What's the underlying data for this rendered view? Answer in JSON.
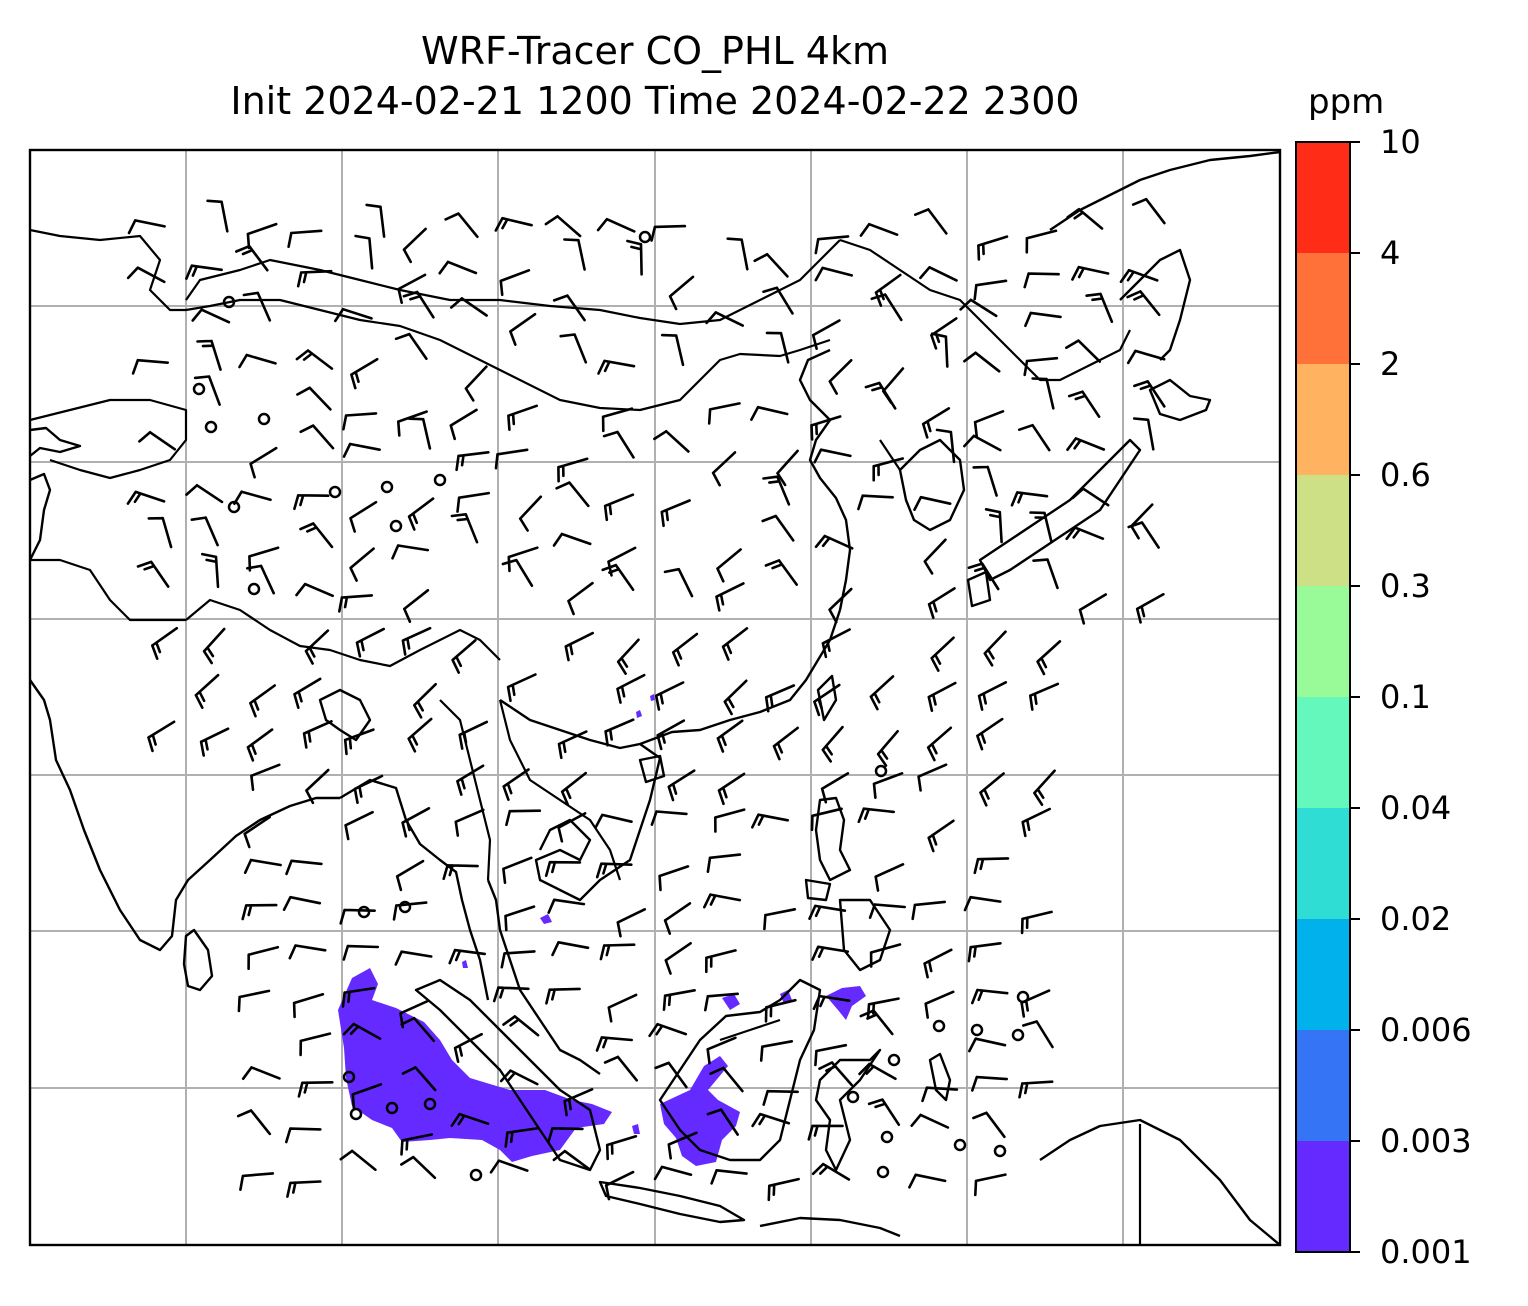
{
  "title": {
    "line1": "WRF-Tracer CO_PHL 4km",
    "line2": "Init 2024-02-21 1200 Time 2024-02-22 2300"
  },
  "colorbar": {
    "units": "ppm",
    "ticks": [
      "0.001",
      "0.003",
      "0.006",
      "0.02",
      "0.04",
      "0.1",
      "0.3",
      "0.6",
      "2",
      "4",
      "10"
    ],
    "colors": [
      "#652aff",
      "#3574f4",
      "#00b1ec",
      "#2fddd5",
      "#64f8bd",
      "#98fb98",
      "#cde085",
      "#ffb25f",
      "#ff7138",
      "#ff2c17"
    ]
  },
  "map": {
    "tracer_color": "#652aff",
    "grid_color": "#b0b0b0",
    "coastline_color": "#000000",
    "wind_barb_color": "#000000"
  }
}
